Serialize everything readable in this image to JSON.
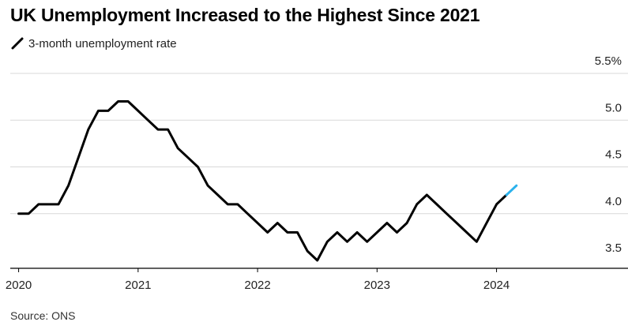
{
  "title": "UK Unemployment Increased to the Highest Since 2021",
  "source": "Source: ONS",
  "colors": {
    "line": "#000000",
    "highlight": "#2BB2EC",
    "grid": "#d9d9d9",
    "axis": "#000000"
  },
  "chart_data": {
    "type": "line",
    "title": "UK Unemployment Increased to the Highest Since 2021",
    "xlabel": "",
    "ylabel": "",
    "grid": true,
    "legend": "top-left",
    "ylim": [
      3.5,
      5.5
    ],
    "xlim": [
      2019.93,
      2024.75
    ],
    "y_ticks": [
      {
        "value": 5.5,
        "label": "5.5%"
      },
      {
        "value": 5.0,
        "label": "5.0"
      },
      {
        "value": 4.5,
        "label": "4.5"
      },
      {
        "value": 4.0,
        "label": "4.0"
      },
      {
        "value": 3.5,
        "label": "3.5"
      }
    ],
    "x_ticks": [
      {
        "value": 2020,
        "label": "2020"
      },
      {
        "value": 2021,
        "label": "2021"
      },
      {
        "value": 2022,
        "label": "2022"
      },
      {
        "value": 2023,
        "label": "2023"
      },
      {
        "value": 2024,
        "label": "2024"
      }
    ],
    "series": [
      {
        "name": "3-month unemployment rate",
        "x": [
          2020.0,
          2020.0833,
          2020.1667,
          2020.25,
          2020.3333,
          2020.4167,
          2020.5,
          2020.5833,
          2020.6667,
          2020.75,
          2020.8333,
          2020.9167,
          2021.0,
          2021.0833,
          2021.1667,
          2021.25,
          2021.3333,
          2021.4167,
          2021.5,
          2021.5833,
          2021.6667,
          2021.75,
          2021.8333,
          2021.9167,
          2022.0,
          2022.0833,
          2022.1667,
          2022.25,
          2022.3333,
          2022.4167,
          2022.5,
          2022.5833,
          2022.6667,
          2022.75,
          2022.8333,
          2022.9167,
          2023.0,
          2023.0833,
          2023.1667,
          2023.25,
          2023.3333,
          2023.4167,
          2023.5,
          2023.5833,
          2023.6667,
          2023.75,
          2023.8333,
          2023.9167,
          2024.0,
          2024.0833,
          2024.1667
        ],
        "values": [
          4.0,
          4.0,
          4.1,
          4.1,
          4.1,
          4.3,
          4.6,
          4.9,
          5.1,
          5.1,
          5.2,
          5.2,
          5.1,
          5.0,
          4.9,
          4.9,
          4.7,
          4.6,
          4.5,
          4.3,
          4.2,
          4.1,
          4.1,
          4.0,
          3.9,
          3.8,
          3.9,
          3.8,
          3.8,
          3.6,
          3.5,
          3.7,
          3.8,
          3.7,
          3.8,
          3.7,
          3.8,
          3.9,
          3.8,
          3.9,
          4.1,
          4.2,
          4.1,
          4.0,
          3.9,
          3.8,
          3.7,
          3.9,
          4.1,
          4.2,
          4.3
        ]
      }
    ]
  }
}
